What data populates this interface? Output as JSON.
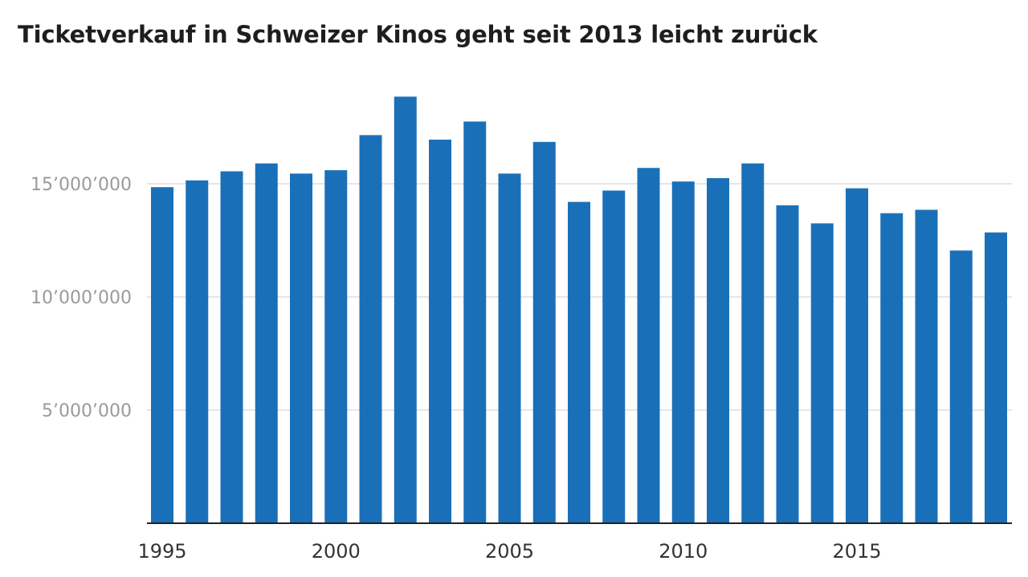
{
  "chart_data": {
    "type": "bar",
    "title": "Ticketverkauf in Schweizer Kinos geht seit 2013 leicht zurück",
    "xlabel": "",
    "ylabel": "",
    "categories": [
      "1995",
      "1996",
      "1997",
      "1998",
      "1999",
      "2000",
      "2001",
      "2002",
      "2003",
      "2004",
      "2005",
      "2006",
      "2007",
      "2008",
      "2009",
      "2010",
      "2011",
      "2012",
      "2013",
      "2014",
      "2015",
      "2016",
      "2017",
      "2018",
      "2019"
    ],
    "series": [
      {
        "values": [
          14850000,
          15150000,
          15550000,
          15900000,
          15450000,
          15600000,
          17150000,
          18850000,
          16950000,
          17750000,
          15450000,
          16850000,
          14200000,
          14700000,
          15700000,
          15100000,
          15250000,
          15900000,
          14050000,
          13250000,
          14800000,
          13700000,
          13850000,
          12050000,
          12850000
        ]
      }
    ],
    "ylim": [
      0,
      19500000
    ],
    "yticks": [
      5000000,
      10000000,
      15000000
    ],
    "ytick_labels": [
      "5’000’000",
      "10’000’000",
      "15’000’000"
    ],
    "xtick_labels": [
      "1995",
      "2000",
      "2005",
      "2010",
      "2015"
    ],
    "grid": true,
    "legend": "none",
    "colors": {
      "bar": "#1a70b8",
      "grid": "#e6e6e6",
      "axis": "#222222"
    }
  }
}
